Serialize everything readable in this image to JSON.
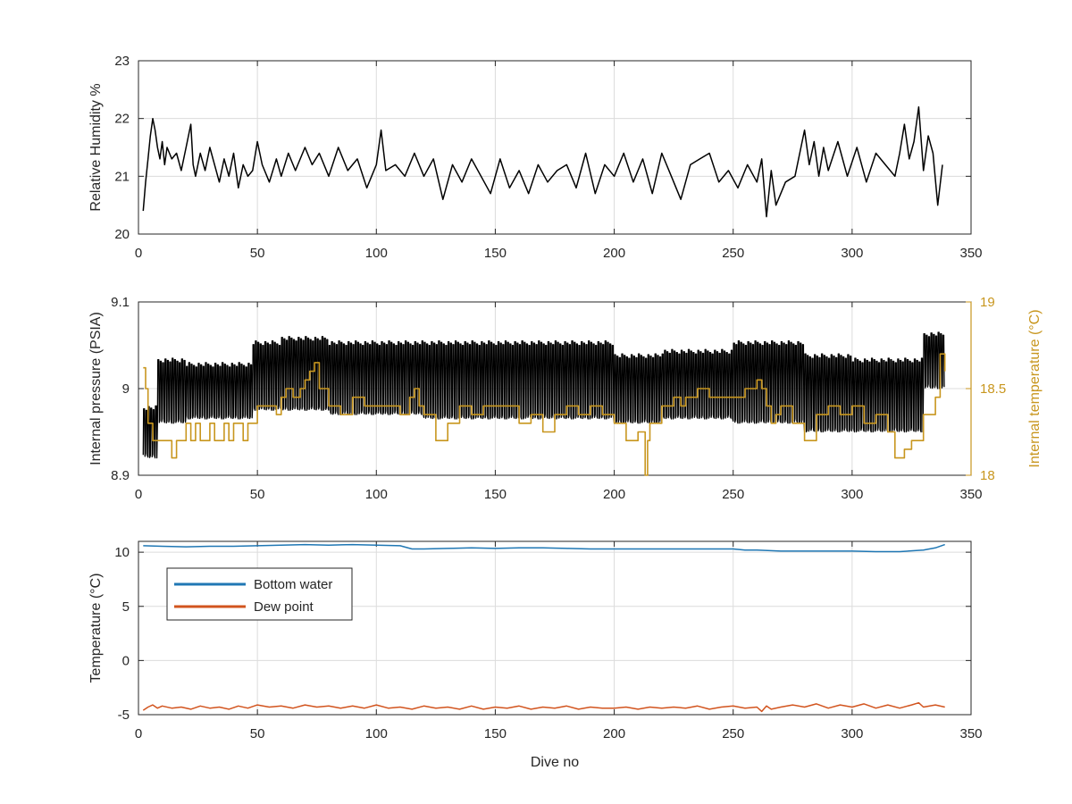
{
  "colors": {
    "axis": "#262626",
    "grid": "#dcdcdc",
    "humidity": "#000000",
    "pressure": "#000000",
    "internal_temp": "#c8961e",
    "bottom_water": "#1f77b4",
    "dew_point": "#d2541e"
  },
  "chart_data": [
    {
      "type": "line",
      "xlabel": "",
      "ylabel": "Relative Humidity %",
      "xlim": [
        0,
        350
      ],
      "ylim": [
        20,
        23
      ],
      "xticks": [
        "0",
        "50",
        "100",
        "150",
        "200",
        "250",
        "300",
        "350"
      ],
      "yticks": [
        "20",
        "21",
        "22",
        "23"
      ],
      "grid": true,
      "series": [
        {
          "x": [
            2,
            3,
            4,
            5,
            6,
            7,
            8,
            9,
            10,
            11,
            12,
            14,
            16,
            18,
            20,
            22,
            23,
            24,
            26,
            28,
            30,
            32,
            34,
            36,
            38,
            40,
            42,
            44,
            46,
            48,
            50,
            52,
            55,
            58,
            60,
            63,
            66,
            70,
            73,
            76,
            80,
            84,
            88,
            92,
            96,
            100,
            102,
            104,
            108,
            112,
            116,
            120,
            124,
            128,
            132,
            136,
            140,
            144,
            148,
            152,
            156,
            160,
            164,
            168,
            172,
            176,
            180,
            184,
            188,
            192,
            196,
            200,
            204,
            208,
            212,
            216,
            220,
            224,
            228,
            232,
            236,
            240,
            244,
            248,
            252,
            256,
            260,
            262,
            264,
            266,
            268,
            272,
            276,
            280,
            282,
            284,
            286,
            288,
            290,
            294,
            298,
            302,
            306,
            310,
            314,
            318,
            320,
            322,
            324,
            326,
            328,
            330,
            332,
            334,
            336,
            338
          ],
          "values": [
            20.4,
            20.9,
            21.3,
            21.7,
            22.0,
            21.8,
            21.5,
            21.3,
            21.6,
            21.2,
            21.5,
            21.3,
            21.4,
            21.1,
            21.5,
            21.9,
            21.2,
            21.0,
            21.4,
            21.1,
            21.5,
            21.2,
            20.9,
            21.3,
            21.0,
            21.4,
            20.8,
            21.2,
            21.0,
            21.1,
            21.6,
            21.2,
            20.9,
            21.3,
            21.0,
            21.4,
            21.1,
            21.5,
            21.2,
            21.4,
            21.0,
            21.5,
            21.1,
            21.3,
            20.8,
            21.2,
            21.8,
            21.1,
            21.2,
            21.0,
            21.4,
            21.0,
            21.3,
            20.6,
            21.2,
            20.9,
            21.3,
            21.0,
            20.7,
            21.3,
            20.8,
            21.1,
            20.7,
            21.2,
            20.9,
            21.1,
            21.2,
            20.8,
            21.4,
            20.7,
            21.2,
            21.0,
            21.4,
            20.9,
            21.3,
            20.7,
            21.4,
            21.0,
            20.6,
            21.2,
            21.3,
            21.4,
            20.9,
            21.1,
            20.8,
            21.2,
            20.9,
            21.3,
            20.3,
            21.1,
            20.5,
            20.9,
            21.0,
            21.8,
            21.2,
            21.6,
            21.0,
            21.5,
            21.1,
            21.6,
            21.0,
            21.5,
            20.9,
            21.4,
            21.2,
            21.0,
            21.4,
            21.9,
            21.3,
            21.6,
            22.2,
            21.1,
            21.7,
            21.4,
            20.5,
            21.2
          ]
        }
      ]
    },
    {
      "type": "line",
      "xlabel": "",
      "ylabel": "Internal pressure (PSIA)",
      "ylabel_right": "Internal temperature (°C)",
      "xlim": [
        0,
        350
      ],
      "ylim": [
        8.9,
        9.1
      ],
      "ylim_right": [
        18,
        19
      ],
      "xticks": [
        "0",
        "50",
        "100",
        "150",
        "200",
        "250",
        "300",
        "350"
      ],
      "yticks": [
        "8.9",
        "9",
        "9.1"
      ],
      "yticks_right": [
        "18",
        "18.5",
        "19"
      ],
      "grid": true,
      "pressure_series": [
        {
          "x0": 2,
          "x1": 8,
          "high": 8.98,
          "low": 8.92
        },
        {
          "x0": 8,
          "x1": 20,
          "high": 9.035,
          "low": 8.96
        },
        {
          "x0": 20,
          "x1": 48,
          "high": 9.03,
          "low": 8.965
        },
        {
          "x0": 48,
          "x1": 60,
          "high": 9.055,
          "low": 8.975
        },
        {
          "x0": 60,
          "x1": 80,
          "high": 9.06,
          "low": 8.975
        },
        {
          "x0": 80,
          "x1": 120,
          "high": 9.055,
          "low": 8.97
        },
        {
          "x0": 120,
          "x1": 160,
          "high": 9.055,
          "low": 8.965
        },
        {
          "x0": 160,
          "x1": 200,
          "high": 9.055,
          "low": 8.965
        },
        {
          "x0": 200,
          "x1": 220,
          "high": 9.04,
          "low": 8.96
        },
        {
          "x0": 220,
          "x1": 250,
          "high": 9.045,
          "low": 8.965
        },
        {
          "x0": 250,
          "x1": 280,
          "high": 9.055,
          "low": 8.96
        },
        {
          "x0": 280,
          "x1": 300,
          "high": 9.04,
          "low": 8.95
        },
        {
          "x0": 300,
          "x1": 330,
          "high": 9.035,
          "low": 8.95
        },
        {
          "x0": 330,
          "x1": 339,
          "high": 9.065,
          "low": 9.0
        }
      ],
      "temperature_series": {
        "x": [
          2,
          3,
          4,
          6,
          8,
          10,
          12,
          14,
          16,
          18,
          20,
          22,
          24,
          26,
          28,
          30,
          32,
          34,
          36,
          38,
          40,
          42,
          44,
          46,
          48,
          50,
          55,
          58,
          60,
          62,
          65,
          68,
          70,
          72,
          74,
          76,
          80,
          85,
          90,
          95,
          100,
          105,
          110,
          114,
          116,
          118,
          120,
          125,
          130,
          135,
          140,
          145,
          150,
          155,
          160,
          165,
          170,
          175,
          180,
          185,
          190,
          195,
          200,
          205,
          210,
          212,
          213,
          214,
          215,
          220,
          225,
          228,
          230,
          235,
          240,
          245,
          250,
          255,
          260,
          262,
          264,
          266,
          268,
          270,
          275,
          280,
          285,
          290,
          295,
          300,
          305,
          310,
          315,
          318,
          320,
          322,
          325,
          330,
          335,
          337,
          339
        ],
        "values": [
          18.62,
          18.5,
          18.3,
          18.2,
          18.2,
          18.2,
          18.2,
          18.1,
          18.2,
          18.2,
          18.3,
          18.2,
          18.3,
          18.2,
          18.2,
          18.3,
          18.2,
          18.2,
          18.3,
          18.2,
          18.3,
          18.3,
          18.2,
          18.3,
          18.3,
          18.4,
          18.4,
          18.35,
          18.45,
          18.5,
          18.45,
          18.5,
          18.55,
          18.6,
          18.65,
          18.5,
          18.4,
          18.35,
          18.45,
          18.4,
          18.4,
          18.4,
          18.35,
          18.45,
          18.5,
          18.4,
          18.35,
          18.2,
          18.3,
          18.4,
          18.35,
          18.4,
          18.4,
          18.4,
          18.3,
          18.35,
          18.25,
          18.35,
          18.4,
          18.35,
          18.4,
          18.35,
          18.3,
          18.2,
          18.25,
          18.25,
          18.0,
          18.2,
          18.3,
          18.4,
          18.45,
          18.4,
          18.45,
          18.5,
          18.45,
          18.45,
          18.45,
          18.5,
          18.55,
          18.5,
          18.4,
          18.3,
          18.35,
          18.4,
          18.3,
          18.2,
          18.35,
          18.4,
          18.35,
          18.4,
          18.3,
          18.35,
          18.25,
          18.1,
          18.1,
          18.15,
          18.2,
          18.35,
          18.45,
          18.7,
          18.6
        ]
      }
    },
    {
      "type": "line",
      "xlabel": "Dive no",
      "ylabel": "Temperature (°C)",
      "xlim": [
        0,
        350
      ],
      "ylim": [
        -5,
        11
      ],
      "xticks": [
        "0",
        "50",
        "100",
        "150",
        "200",
        "250",
        "300",
        "350"
      ],
      "yticks": [
        "-5",
        "0",
        "5",
        "10"
      ],
      "grid": true,
      "legend": {
        "position": "top-left",
        "entries": [
          "Bottom water",
          "Dew point"
        ]
      },
      "series": [
        {
          "name": "Bottom water",
          "x": [
            2,
            10,
            20,
            30,
            40,
            50,
            60,
            70,
            80,
            90,
            100,
            110,
            115,
            120,
            130,
            140,
            150,
            160,
            170,
            180,
            190,
            200,
            210,
            220,
            230,
            240,
            250,
            255,
            260,
            270,
            280,
            290,
            300,
            310,
            320,
            330,
            335,
            339
          ],
          "values": [
            10.6,
            10.55,
            10.5,
            10.55,
            10.55,
            10.6,
            10.65,
            10.7,
            10.65,
            10.7,
            10.65,
            10.6,
            10.3,
            10.3,
            10.35,
            10.4,
            10.35,
            10.4,
            10.4,
            10.35,
            10.3,
            10.3,
            10.3,
            10.3,
            10.3,
            10.3,
            10.3,
            10.2,
            10.2,
            10.1,
            10.1,
            10.1,
            10.1,
            10.05,
            10.05,
            10.2,
            10.4,
            10.7
          ]
        },
        {
          "name": "Dew point",
          "x": [
            2,
            4,
            6,
            8,
            10,
            14,
            18,
            22,
            26,
            30,
            34,
            38,
            42,
            46,
            50,
            55,
            60,
            65,
            70,
            75,
            80,
            85,
            90,
            95,
            100,
            105,
            110,
            115,
            120,
            125,
            130,
            135,
            140,
            145,
            150,
            155,
            160,
            165,
            170,
            175,
            180,
            185,
            190,
            195,
            200,
            205,
            210,
            215,
            220,
            225,
            230,
            235,
            240,
            245,
            250,
            255,
            260,
            262,
            264,
            266,
            270,
            275,
            280,
            285,
            290,
            295,
            300,
            305,
            310,
            315,
            320,
            325,
            328,
            330,
            335,
            339
          ],
          "values": [
            -4.6,
            -4.3,
            -4.1,
            -4.4,
            -4.2,
            -4.4,
            -4.3,
            -4.5,
            -4.2,
            -4.4,
            -4.3,
            -4.5,
            -4.2,
            -4.4,
            -4.1,
            -4.3,
            -4.2,
            -4.4,
            -4.1,
            -4.3,
            -4.2,
            -4.4,
            -4.2,
            -4.4,
            -4.1,
            -4.4,
            -4.3,
            -4.5,
            -4.2,
            -4.4,
            -4.3,
            -4.5,
            -4.2,
            -4.5,
            -4.3,
            -4.4,
            -4.2,
            -4.5,
            -4.3,
            -4.4,
            -4.2,
            -4.5,
            -4.3,
            -4.4,
            -4.4,
            -4.3,
            -4.5,
            -4.3,
            -4.4,
            -4.3,
            -4.4,
            -4.2,
            -4.5,
            -4.3,
            -4.2,
            -4.4,
            -4.3,
            -4.7,
            -4.2,
            -4.5,
            -4.3,
            -4.1,
            -4.3,
            -4.0,
            -4.4,
            -4.1,
            -4.3,
            -4.0,
            -4.4,
            -4.1,
            -4.4,
            -4.1,
            -3.9,
            -4.3,
            -4.1,
            -4.3
          ]
        }
      ]
    }
  ]
}
